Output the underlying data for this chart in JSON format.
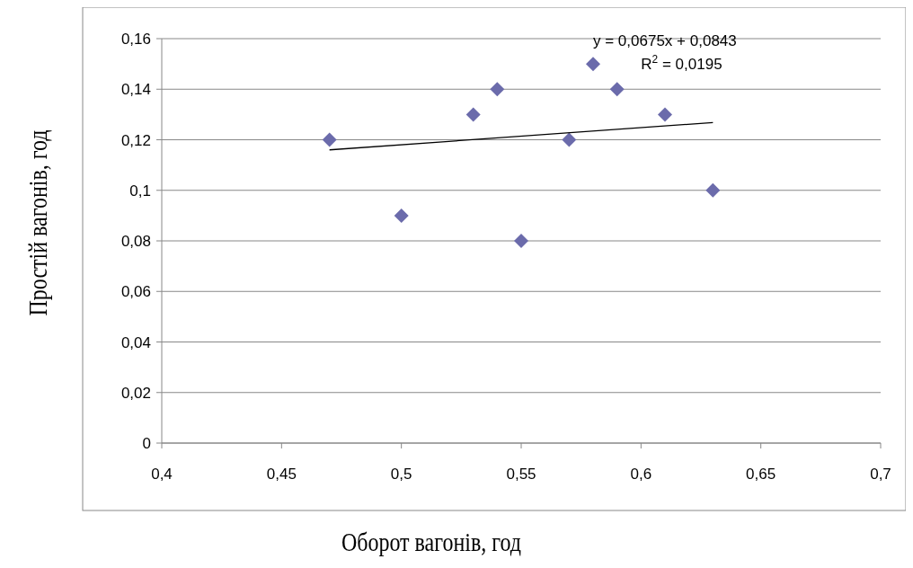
{
  "chart_data": {
    "type": "scatter",
    "xlabel": "Оборот вагонів, год",
    "ylabel": "Простій вагонів, год",
    "x": [
      0.47,
      0.5,
      0.53,
      0.54,
      0.55,
      0.57,
      0.58,
      0.59,
      0.61,
      0.63
    ],
    "series": [
      {
        "color": "#6b6bab",
        "marker": "diamond",
        "values": [
          0.12,
          0.09,
          0.13,
          0.14,
          0.08,
          0.12,
          0.15,
          0.14,
          0.13,
          0.1
        ]
      },
      {
        "type": "line",
        "color": "#000000",
        "x": [
          0.47,
          0.63
        ],
        "values": [
          0.116,
          0.1268
        ],
        "line_style": "solid",
        "marker": "none"
      }
    ],
    "xlim": [
      0.4,
      0.7
    ],
    "xticks": [
      {
        "value": 0.4,
        "label": "0,4"
      },
      {
        "value": 0.45,
        "label": "0,45"
      },
      {
        "value": 0.5,
        "label": "0,5"
      },
      {
        "value": 0.55,
        "label": "0,55"
      },
      {
        "value": 0.6,
        "label": "0,6"
      },
      {
        "value": 0.65,
        "label": "0,65"
      },
      {
        "value": 0.7,
        "label": "0,7"
      }
    ],
    "ylim": [
      0,
      0.16
    ],
    "yticks": [
      0,
      {
        "value": 0.02,
        "label": "0,02"
      },
      {
        "value": 0.04,
        "label": "0,04"
      },
      {
        "value": 0.06,
        "label": "0,06"
      },
      {
        "value": 0.08,
        "label": "0,08"
      },
      {
        "value": 0.1,
        "label": "0,1"
      },
      {
        "value": 0.12,
        "label": "0,12"
      },
      {
        "value": 0.14,
        "label": "0,14"
      },
      {
        "value": 0.16,
        "label": "0,16"
      }
    ],
    "grid": "y",
    "annotations": [
      "y = 0,0675x + 0,0843",
      "R$^{2}$ = 0,0195"
    ]
  }
}
